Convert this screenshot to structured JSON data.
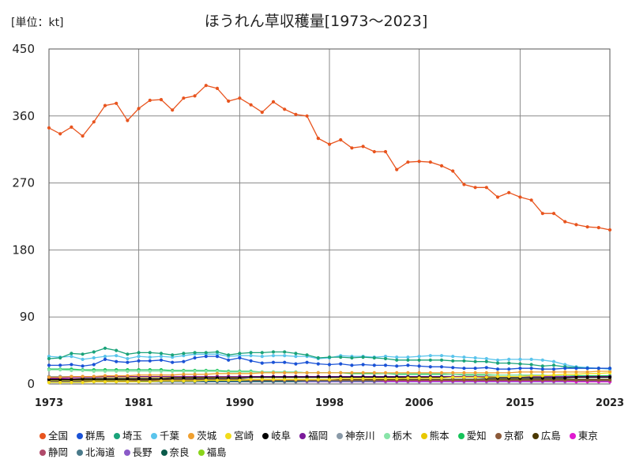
{
  "unit_label": "[単位：kt]",
  "chart_data": {
    "type": "line",
    "title": "ほうれん草収穫量[1973～2023]",
    "xlabel": "",
    "ylabel": "",
    "xlim": [
      1973,
      2023
    ],
    "ylim": [
      0,
      450
    ],
    "x_ticks": [
      1973,
      1981,
      1990,
      1998,
      2006,
      2015,
      2023
    ],
    "y_ticks": [
      0,
      90,
      180,
      270,
      360,
      450
    ],
    "grid": true,
    "legend_position": "bottom",
    "x": [
      1973,
      1974,
      1975,
      1976,
      1977,
      1978,
      1979,
      1980,
      1981,
      1982,
      1983,
      1984,
      1985,
      1986,
      1987,
      1988,
      1989,
      1990,
      1991,
      1992,
      1993,
      1994,
      1995,
      1996,
      1997,
      1998,
      1999,
      2000,
      2001,
      2002,
      2003,
      2004,
      2005,
      2006,
      2007,
      2008,
      2009,
      2010,
      2011,
      2012,
      2013,
      2014,
      2015,
      2016,
      2017,
      2018,
      2019,
      2020,
      2021,
      2022,
      2023
    ],
    "series": [
      {
        "name": "全国",
        "color": "#e8541e",
        "values": [
          344,
          336,
          345,
          333,
          352,
          374,
          377,
          354,
          370,
          381,
          382,
          368,
          384,
          387,
          401,
          397,
          380,
          384,
          375,
          365,
          379,
          369,
          362,
          360,
          330,
          322,
          328,
          317,
          319,
          312,
          312,
          288,
          298,
          299,
          298,
          293,
          286,
          268,
          264,
          264,
          251,
          257,
          251,
          247,
          229,
          229,
          218,
          214,
          211,
          210,
          207
        ]
      },
      {
        "name": "群馬",
        "color": "#1a52d6",
        "values": [
          25,
          25,
          26,
          24,
          26,
          33,
          30,
          29,
          31,
          31,
          32,
          29,
          30,
          35,
          37,
          37,
          32,
          35,
          31,
          28,
          29,
          29,
          27,
          29,
          27,
          26,
          27,
          25,
          26,
          25,
          25,
          24,
          25,
          24,
          23,
          23,
          22,
          21,
          21,
          22,
          20,
          20,
          21,
          21,
          20,
          20,
          21,
          21,
          21,
          21,
          21
        ]
      },
      {
        "name": "埼玉",
        "color": "#1aa37a",
        "values": [
          34,
          35,
          41,
          40,
          43,
          48,
          45,
          40,
          42,
          42,
          41,
          39,
          41,
          42,
          42,
          43,
          39,
          41,
          42,
          42,
          43,
          43,
          41,
          39,
          35,
          36,
          36,
          35,
          36,
          35,
          34,
          32,
          32,
          32,
          32,
          32,
          31,
          31,
          30,
          30,
          28,
          28,
          27,
          26,
          24,
          25,
          23,
          22,
          21,
          21,
          21
        ]
      },
      {
        "name": "千葉",
        "color": "#5ac4ec",
        "values": [
          37,
          36,
          37,
          33,
          35,
          37,
          38,
          34,
          37,
          36,
          37,
          36,
          38,
          40,
          40,
          40,
          37,
          38,
          38,
          37,
          38,
          38,
          37,
          37,
          34,
          35,
          38,
          37,
          37,
          36,
          37,
          36,
          36,
          37,
          38,
          38,
          37,
          36,
          35,
          34,
          32,
          33,
          33,
          33,
          32,
          30,
          26,
          23,
          22,
          21,
          20
        ]
      },
      {
        "name": "茨城",
        "color": "#f0a030",
        "values": [
          9,
          9,
          10,
          10,
          10,
          11,
          11,
          11,
          12,
          12,
          12,
          12,
          13,
          13,
          13,
          14,
          14,
          14,
          14,
          15,
          15,
          15,
          15,
          15,
          15,
          15,
          15,
          15,
          15,
          15,
          15,
          15,
          15,
          15,
          15,
          15,
          15,
          15,
          15,
          15,
          15,
          15,
          16,
          16,
          16,
          16,
          16,
          16,
          16,
          17,
          17
        ]
      },
      {
        "name": "宮崎",
        "color": "#f2dc1a",
        "values": [
          2,
          2,
          2,
          2,
          3,
          3,
          3,
          3,
          3,
          3,
          4,
          4,
          4,
          4,
          5,
          5,
          5,
          5,
          6,
          6,
          6,
          6,
          6,
          6,
          6,
          6,
          7,
          7,
          7,
          7,
          7,
          7,
          8,
          8,
          8,
          8,
          9,
          9,
          9,
          9,
          10,
          10,
          10,
          11,
          11,
          12,
          13,
          13,
          14,
          14,
          15
        ]
      },
      {
        "name": "岐阜",
        "color": "#000000",
        "values": [
          6,
          6,
          6,
          7,
          7,
          7,
          7,
          7,
          7,
          7,
          7,
          8,
          8,
          8,
          8,
          8,
          8,
          8,
          9,
          9,
          9,
          9,
          9,
          9,
          9,
          9,
          9,
          9,
          9,
          9,
          9,
          9,
          9,
          9,
          9,
          9,
          9,
          9,
          9,
          8,
          8,
          8,
          8,
          8,
          8,
          8,
          8,
          9,
          9,
          9,
          9
        ]
      },
      {
        "name": "福岡",
        "color": "#7a1a9a",
        "values": [
          8,
          8,
          9,
          9,
          9,
          10,
          10,
          10,
          10,
          10,
          10,
          10,
          10,
          10,
          10,
          10,
          10,
          10,
          10,
          10,
          10,
          10,
          10,
          10,
          10,
          10,
          10,
          10,
          10,
          10,
          10,
          10,
          10,
          10,
          10,
          10,
          10,
          10,
          10,
          10,
          10,
          10,
          10,
          10,
          10,
          10,
          10,
          10,
          10,
          10,
          10
        ]
      },
      {
        "name": "神奈川",
        "color": "#8a9aa8",
        "values": [
          10,
          10,
          10,
          10,
          10,
          10,
          10,
          10,
          10,
          10,
          10,
          10,
          10,
          10,
          10,
          10,
          10,
          10,
          10,
          10,
          10,
          10,
          10,
          10,
          10,
          10,
          10,
          10,
          10,
          10,
          10,
          9,
          9,
          9,
          9,
          9,
          9,
          9,
          9,
          9,
          9,
          9,
          9,
          9,
          9,
          9,
          9,
          9,
          9,
          9,
          9
        ]
      },
      {
        "name": "栃木",
        "color": "#88e4a8",
        "values": [
          19,
          19,
          18,
          18,
          17,
          17,
          17,
          17,
          17,
          17,
          17,
          17,
          17,
          17,
          17,
          17,
          16,
          16,
          16,
          16,
          16,
          16,
          16,
          15,
          15,
          15,
          15,
          15,
          15,
          15,
          14,
          14,
          14,
          14,
          14,
          14,
          13,
          13,
          13,
          13,
          12,
          12,
          12,
          12,
          12,
          11,
          11,
          10,
          10,
          10,
          10
        ]
      },
      {
        "name": "熊本",
        "color": "#e8c800",
        "values": [
          9,
          9,
          9,
          9,
          9,
          9,
          9,
          9,
          9,
          9,
          9,
          9,
          9,
          9,
          9,
          9,
          9,
          9,
          9,
          9,
          9,
          9,
          9,
          9,
          9,
          9,
          9,
          9,
          9,
          9,
          9,
          9,
          9,
          9,
          9,
          9,
          9,
          9,
          9,
          9,
          9,
          9,
          9,
          9,
          9,
          9,
          9,
          10,
          10,
          10,
          10
        ]
      },
      {
        "name": "愛知",
        "color": "#16c45a",
        "values": [
          20,
          20,
          20,
          19,
          19,
          19,
          19,
          19,
          19,
          19,
          19,
          18,
          18,
          18,
          18,
          18,
          17,
          17,
          17,
          16,
          16,
          16,
          16,
          15,
          15,
          15,
          15,
          14,
          14,
          14,
          14,
          13,
          13,
          13,
          13,
          13,
          13,
          12,
          12,
          12,
          12,
          12,
          12,
          11,
          11,
          11,
          11,
          11,
          11,
          11,
          11
        ]
      },
      {
        "name": "京都",
        "color": "#8c5a3a",
        "values": [
          4,
          4,
          4,
          4,
          4,
          4,
          4,
          4,
          5,
          5,
          5,
          5,
          5,
          5,
          5,
          5,
          5,
          5,
          5,
          5,
          5,
          5,
          5,
          5,
          5,
          5,
          5,
          5,
          5,
          5,
          5,
          5,
          5,
          5,
          5,
          5,
          5,
          5,
          5,
          5,
          5,
          5,
          5,
          5,
          5,
          5,
          5,
          5,
          5,
          5,
          5
        ]
      },
      {
        "name": "広島",
        "color": "#4a3800",
        "values": [
          6,
          6,
          6,
          6,
          6,
          6,
          6,
          6,
          6,
          6,
          6,
          6,
          6,
          6,
          6,
          6,
          6,
          6,
          6,
          6,
          6,
          6,
          6,
          6,
          6,
          6,
          6,
          6,
          6,
          6,
          6,
          6,
          6,
          6,
          6,
          6,
          6,
          6,
          6,
          6,
          6,
          6,
          6,
          6,
          6,
          6,
          6,
          6,
          6,
          6,
          6
        ]
      },
      {
        "name": "東京",
        "color": "#e01ad0",
        "values": [
          7,
          7,
          7,
          7,
          6,
          6,
          6,
          6,
          6,
          6,
          6,
          6,
          6,
          6,
          6,
          6,
          6,
          6,
          5,
          5,
          5,
          5,
          5,
          5,
          5,
          5,
          5,
          5,
          5,
          5,
          4,
          4,
          4,
          4,
          4,
          4,
          4,
          4,
          4,
          4,
          4,
          4,
          4,
          4,
          4,
          4,
          4,
          3,
          3,
          3,
          3
        ]
      },
      {
        "name": "静岡",
        "color": "#b04a6a",
        "values": [
          10,
          10,
          10,
          10,
          10,
          10,
          10,
          10,
          10,
          10,
          10,
          10,
          10,
          10,
          10,
          10,
          10,
          10,
          10,
          10,
          10,
          10,
          10,
          10,
          10,
          9,
          9,
          9,
          9,
          9,
          9,
          9,
          9,
          9,
          9,
          9,
          9,
          9,
          9,
          9,
          9,
          9,
          9,
          9,
          9,
          9,
          9,
          9,
          9,
          9,
          9
        ]
      },
      {
        "name": "北海道",
        "color": "#4a7a8a",
        "values": [
          3,
          3,
          3,
          3,
          3,
          3,
          3,
          3,
          3,
          3,
          3,
          3,
          3,
          3,
          3,
          3,
          3,
          3,
          3,
          3,
          3,
          3,
          3,
          4,
          4,
          4,
          4,
          4,
          4,
          4,
          4,
          4,
          4,
          4,
          4,
          4,
          4,
          4,
          4,
          4,
          4,
          4,
          4,
          4,
          4,
          4,
          4,
          4,
          4,
          4,
          4
        ]
      },
      {
        "name": "長野",
        "color": "#8a5ac8",
        "values": [
          3,
          3,
          3,
          3,
          3,
          3,
          3,
          3,
          3,
          3,
          3,
          3,
          3,
          3,
          3,
          3,
          3,
          3,
          3,
          3,
          3,
          3,
          3,
          3,
          3,
          3,
          3,
          3,
          3,
          3,
          3,
          3,
          3,
          3,
          3,
          3,
          3,
          3,
          3,
          3,
          3,
          3,
          3,
          3,
          3,
          3,
          3,
          3,
          3,
          3,
          3
        ]
      },
      {
        "name": "奈良",
        "color": "#0a5a4a",
        "values": [
          4,
          4,
          4,
          4,
          4,
          4,
          4,
          4,
          4,
          4,
          4,
          4,
          4,
          4,
          4,
          4,
          4,
          4,
          4,
          4,
          4,
          4,
          4,
          4,
          4,
          4,
          4,
          4,
          4,
          4,
          4,
          4,
          4,
          4,
          4,
          4,
          4,
          4,
          4,
          4,
          4,
          4,
          4,
          4,
          4,
          4,
          4,
          4,
          4,
          4,
          4
        ]
      },
      {
        "name": "福島",
        "color": "#8ad41a",
        "values": [
          5,
          5,
          5,
          5,
          5,
          5,
          5,
          5,
          5,
          5,
          5,
          5,
          5,
          5,
          5,
          5,
          5,
          5,
          5,
          5,
          5,
          5,
          5,
          5,
          5,
          5,
          5,
          5,
          5,
          5,
          5,
          5,
          5,
          5,
          5,
          5,
          5,
          5,
          5,
          5,
          5,
          5,
          5,
          5,
          5,
          5,
          5,
          5,
          5,
          5,
          5
        ]
      }
    ]
  }
}
